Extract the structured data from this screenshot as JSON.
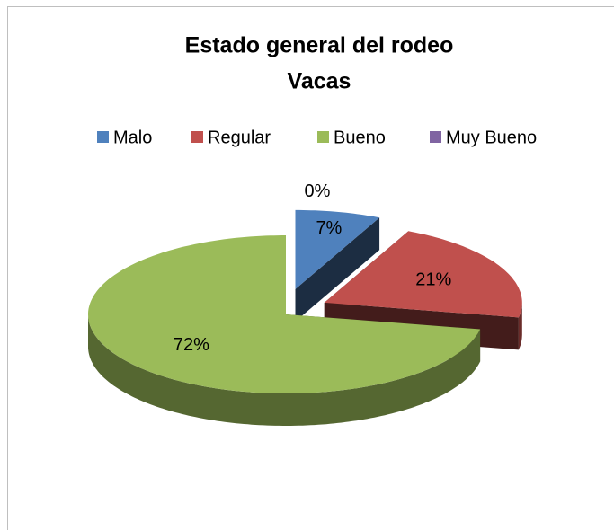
{
  "chart_data": {
    "type": "pie",
    "title": [
      "Estado general del rodeo",
      "Vacas"
    ],
    "categories": [
      "Malo",
      "Regular",
      "Bueno",
      "Muy Bueno"
    ],
    "values": [
      7,
      21,
      72,
      0
    ],
    "value_labels": [
      "7%",
      "21%",
      "72%",
      "0%"
    ],
    "colors": [
      "#4f81bd",
      "#c0504d",
      "#9bbb59",
      "#8064a2"
    ],
    "legend": "top"
  }
}
